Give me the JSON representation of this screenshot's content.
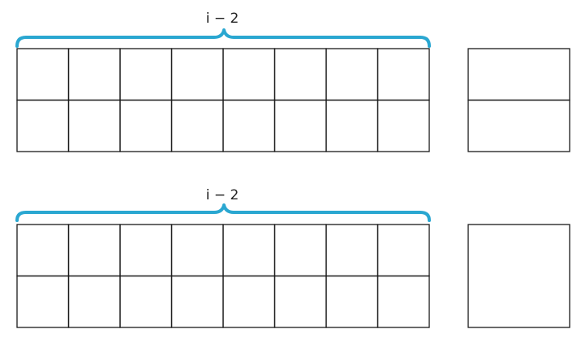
{
  "colors": {
    "brace": "#2aa7d1",
    "grid_line": "#1a1a1a"
  },
  "rows": [
    {
      "brace_label": "i − 2",
      "grid": {
        "columns": 8,
        "rows": 2
      },
      "side_box": {
        "columns": 1,
        "rows": 2
      }
    },
    {
      "brace_label": "i − 2",
      "grid": {
        "columns": 8,
        "rows": 2
      },
      "side_box": {
        "columns": 1,
        "rows": 1
      }
    }
  ]
}
